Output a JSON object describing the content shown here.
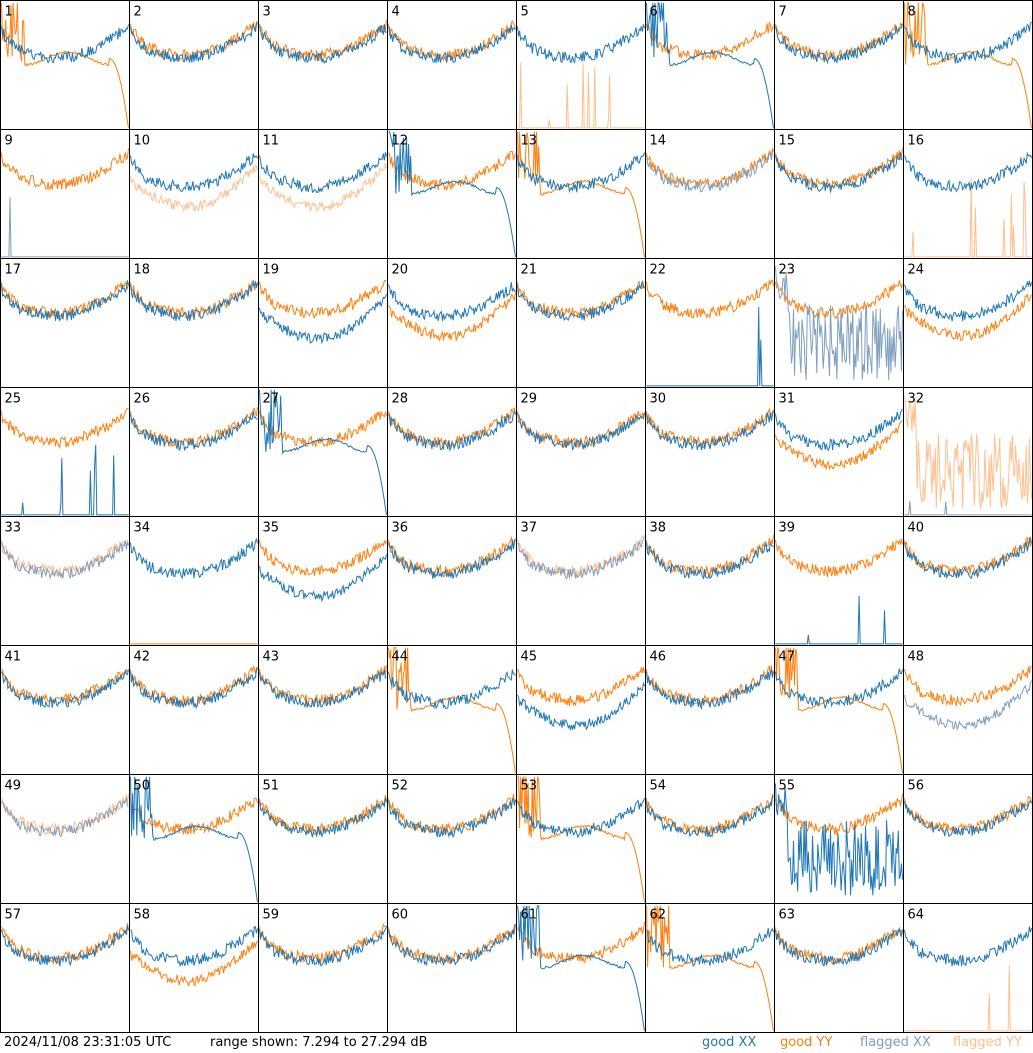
{
  "footer": {
    "timestamp": "2024/11/08 23:31:05 UTC",
    "range": "range shown: 7.294 to 27.294 dB"
  },
  "legend": [
    {
      "label": "good XX",
      "color": "#1f77b4"
    },
    {
      "label": "good YY",
      "color": "#ff7f0e"
    },
    {
      "label": "flagged XX",
      "color": "#7f9fbf"
    },
    {
      "label": "flagged YY",
      "color": "#ffbf8f"
    }
  ],
  "chart_data": {
    "type": "line",
    "grid": {
      "rows": 8,
      "cols": 8
    },
    "ylim_db": [
      7.294,
      27.294
    ],
    "panel_labels": [
      "1",
      "2",
      "3",
      "4",
      "5",
      "6",
      "7",
      "8",
      "9",
      "10",
      "11",
      "12",
      "13",
      "14",
      "15",
      "16",
      "17",
      "18",
      "19",
      "20",
      "21",
      "22",
      "23",
      "24",
      "25",
      "26",
      "27",
      "28",
      "29",
      "30",
      "31",
      "32",
      "33",
      "34",
      "35",
      "36",
      "37",
      "38",
      "39",
      "40",
      "41",
      "42",
      "43",
      "44",
      "45",
      "46",
      "47",
      "48",
      "49",
      "50",
      "51",
      "52",
      "53",
      "54",
      "55",
      "56",
      "57",
      "58",
      "59",
      "60",
      "61",
      "62",
      "63",
      "64"
    ],
    "panels": [
      {
        "id": 1,
        "xx": "good",
        "yy": "good",
        "xx_shape": "normal",
        "yy_shape": "droop"
      },
      {
        "id": 2,
        "xx": "good",
        "yy": "good",
        "xx_shape": "normal",
        "yy_shape": "normal"
      },
      {
        "id": 3,
        "xx": "good",
        "yy": "good",
        "xx_shape": "normal",
        "yy_shape": "normal"
      },
      {
        "id": 4,
        "xx": "good",
        "yy": "good",
        "xx_shape": "normal",
        "yy_shape": "normal"
      },
      {
        "id": 5,
        "xx": "good",
        "yy": "flagged",
        "xx_shape": "normal",
        "yy_shape": "dead"
      },
      {
        "id": 6,
        "xx": "good",
        "yy": "good",
        "xx_shape": "droop",
        "yy_shape": "normal"
      },
      {
        "id": 7,
        "xx": "good",
        "yy": "good",
        "xx_shape": "normal",
        "yy_shape": "normal"
      },
      {
        "id": 8,
        "xx": "good",
        "yy": "good",
        "xx_shape": "normal",
        "yy_shape": "droop"
      },
      {
        "id": 9,
        "xx": "flagged",
        "yy": "good",
        "xx_shape": "dead",
        "yy_shape": "normal"
      },
      {
        "id": 10,
        "xx": "good",
        "yy": "flagged",
        "xx_shape": "normal",
        "yy_shape": "low"
      },
      {
        "id": 11,
        "xx": "good",
        "yy": "flagged",
        "xx_shape": "normal",
        "yy_shape": "low"
      },
      {
        "id": 12,
        "xx": "good",
        "yy": "good",
        "xx_shape": "droop",
        "yy_shape": "normal"
      },
      {
        "id": 13,
        "xx": "good",
        "yy": "good",
        "xx_shape": "normal",
        "yy_shape": "droop"
      },
      {
        "id": 14,
        "xx": "flagged",
        "yy": "good",
        "xx_shape": "normal",
        "yy_shape": "normal"
      },
      {
        "id": 15,
        "xx": "good",
        "yy": "good",
        "xx_shape": "normal",
        "yy_shape": "normal"
      },
      {
        "id": 16,
        "xx": "good",
        "yy": "flagged",
        "xx_shape": "normal",
        "yy_shape": "dead"
      },
      {
        "id": 17,
        "xx": "good",
        "yy": "good",
        "xx_shape": "normal",
        "yy_shape": "normal"
      },
      {
        "id": 18,
        "xx": "good",
        "yy": "good",
        "xx_shape": "normal",
        "yy_shape": "normal"
      },
      {
        "id": 19,
        "xx": "good",
        "yy": "good",
        "xx_shape": "low",
        "yy_shape": "normal"
      },
      {
        "id": 20,
        "xx": "good",
        "yy": "good",
        "xx_shape": "normal",
        "yy_shape": "low"
      },
      {
        "id": 21,
        "xx": "good",
        "yy": "good",
        "xx_shape": "normal",
        "yy_shape": "normal"
      },
      {
        "id": 22,
        "xx": "good",
        "yy": "good",
        "xx_shape": "dead",
        "yy_shape": "normal"
      },
      {
        "id": 23,
        "xx": "flagged",
        "yy": "good",
        "xx_shape": "noisy",
        "yy_shape": "normal"
      },
      {
        "id": 24,
        "xx": "good",
        "yy": "good",
        "xx_shape": "normal",
        "yy_shape": "low"
      },
      {
        "id": 25,
        "xx": "good",
        "yy": "good",
        "xx_shape": "dead",
        "yy_shape": "normal"
      },
      {
        "id": 26,
        "xx": "good",
        "yy": "good",
        "xx_shape": "normal",
        "yy_shape": "normal"
      },
      {
        "id": 27,
        "xx": "good",
        "yy": "good",
        "xx_shape": "droop",
        "yy_shape": "normal"
      },
      {
        "id": 28,
        "xx": "good",
        "yy": "good",
        "xx_shape": "normal",
        "yy_shape": "normal"
      },
      {
        "id": 29,
        "xx": "good",
        "yy": "good",
        "xx_shape": "normal",
        "yy_shape": "normal"
      },
      {
        "id": 30,
        "xx": "good",
        "yy": "good",
        "xx_shape": "normal",
        "yy_shape": "normal"
      },
      {
        "id": 31,
        "xx": "good",
        "yy": "good",
        "xx_shape": "normal",
        "yy_shape": "low"
      },
      {
        "id": 32,
        "xx": "flagged",
        "yy": "flagged",
        "xx_shape": "dead",
        "yy_shape": "noisy"
      },
      {
        "id": 33,
        "xx": "flagged",
        "yy": "flagged",
        "xx_shape": "normal",
        "yy_shape": "normal"
      },
      {
        "id": 34,
        "xx": "good",
        "yy": "good",
        "xx_shape": "normal",
        "yy_shape": "dead"
      },
      {
        "id": 35,
        "xx": "good",
        "yy": "good",
        "xx_shape": "low",
        "yy_shape": "normal"
      },
      {
        "id": 36,
        "xx": "good",
        "yy": "good",
        "xx_shape": "normal",
        "yy_shape": "normal"
      },
      {
        "id": 37,
        "xx": "flagged",
        "yy": "flagged",
        "xx_shape": "normal",
        "yy_shape": "normal"
      },
      {
        "id": 38,
        "xx": "good",
        "yy": "good",
        "xx_shape": "normal",
        "yy_shape": "normal"
      },
      {
        "id": 39,
        "xx": "good",
        "yy": "good",
        "xx_shape": "dead",
        "yy_shape": "normal"
      },
      {
        "id": 40,
        "xx": "good",
        "yy": "good",
        "xx_shape": "normal",
        "yy_shape": "normal"
      },
      {
        "id": 41,
        "xx": "good",
        "yy": "good",
        "xx_shape": "normal",
        "yy_shape": "normal"
      },
      {
        "id": 42,
        "xx": "good",
        "yy": "good",
        "xx_shape": "normal",
        "yy_shape": "normal"
      },
      {
        "id": 43,
        "xx": "good",
        "yy": "good",
        "xx_shape": "normal",
        "yy_shape": "normal"
      },
      {
        "id": 44,
        "xx": "good",
        "yy": "good",
        "xx_shape": "normal",
        "yy_shape": "droop"
      },
      {
        "id": 45,
        "xx": "good",
        "yy": "good",
        "xx_shape": "low",
        "yy_shape": "normal"
      },
      {
        "id": 46,
        "xx": "good",
        "yy": "good",
        "xx_shape": "normal",
        "yy_shape": "normal"
      },
      {
        "id": 47,
        "xx": "good",
        "yy": "good",
        "xx_shape": "normal",
        "yy_shape": "droop"
      },
      {
        "id": 48,
        "xx": "flagged",
        "yy": "good",
        "xx_shape": "low",
        "yy_shape": "normal"
      },
      {
        "id": 49,
        "xx": "flagged",
        "yy": "flagged",
        "xx_shape": "normal",
        "yy_shape": "normal"
      },
      {
        "id": 50,
        "xx": "good",
        "yy": "good",
        "xx_shape": "droop",
        "yy_shape": "normal"
      },
      {
        "id": 51,
        "xx": "good",
        "yy": "good",
        "xx_shape": "normal",
        "yy_shape": "normal"
      },
      {
        "id": 52,
        "xx": "good",
        "yy": "good",
        "xx_shape": "normal",
        "yy_shape": "normal"
      },
      {
        "id": 53,
        "xx": "good",
        "yy": "good",
        "xx_shape": "normal",
        "yy_shape": "droop"
      },
      {
        "id": 54,
        "xx": "good",
        "yy": "good",
        "xx_shape": "normal",
        "yy_shape": "normal"
      },
      {
        "id": 55,
        "xx": "good",
        "yy": "good",
        "xx_shape": "noisy",
        "yy_shape": "normal"
      },
      {
        "id": 56,
        "xx": "good",
        "yy": "good",
        "xx_shape": "normal",
        "yy_shape": "normal"
      },
      {
        "id": 57,
        "xx": "good",
        "yy": "good",
        "xx_shape": "normal",
        "yy_shape": "normal"
      },
      {
        "id": 58,
        "xx": "good",
        "yy": "good",
        "xx_shape": "normal",
        "yy_shape": "low"
      },
      {
        "id": 59,
        "xx": "good",
        "yy": "good",
        "xx_shape": "normal",
        "yy_shape": "normal"
      },
      {
        "id": 60,
        "xx": "good",
        "yy": "good",
        "xx_shape": "normal",
        "yy_shape": "normal"
      },
      {
        "id": 61,
        "xx": "good",
        "yy": "good",
        "xx_shape": "droop",
        "yy_shape": "normal"
      },
      {
        "id": 62,
        "xx": "good",
        "yy": "good",
        "xx_shape": "normal",
        "yy_shape": "droop"
      },
      {
        "id": 63,
        "xx": "good",
        "yy": "good",
        "xx_shape": "normal",
        "yy_shape": "normal"
      },
      {
        "id": 64,
        "xx": "good",
        "yy": "flagged",
        "xx_shape": "normal",
        "yy_shape": "dead"
      }
    ]
  }
}
